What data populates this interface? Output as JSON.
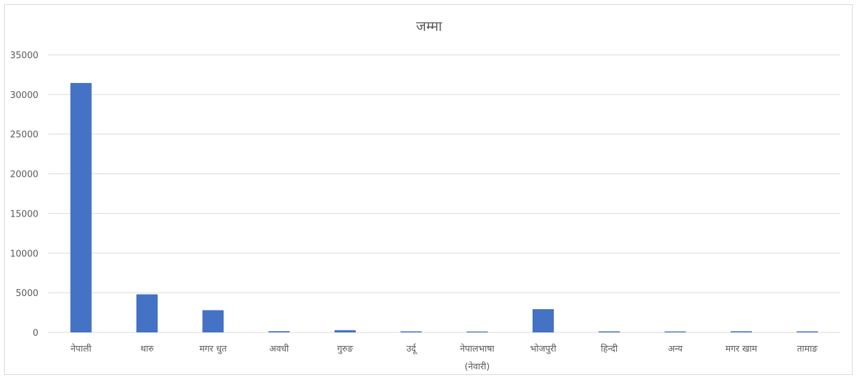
{
  "chart_data": {
    "type": "bar",
    "title": "जम्मा",
    "xlabel": "",
    "ylabel": "",
    "ylim": [
      0,
      35000
    ],
    "yticks": [
      0,
      5000,
      10000,
      15000,
      20000,
      25000,
      30000,
      35000
    ],
    "grid": true,
    "legend": "none",
    "bar_color": "#4472C4",
    "categories": [
      "नेपाली",
      "थारु",
      "मगर धुत",
      "अवधी",
      "गुरुङ",
      "उर्दू",
      "नेपालभाषा (नेवारी)",
      "भोजपुरी",
      "हिन्दी",
      "अन्य",
      "मगर खाम",
      "तामाङ"
    ],
    "values": [
      31450,
      4800,
      2800,
      150,
      280,
      130,
      110,
      2930,
      130,
      120,
      140,
      130
    ]
  }
}
